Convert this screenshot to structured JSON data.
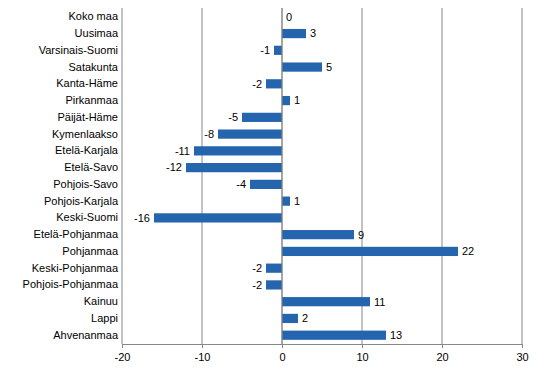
{
  "chart_data": {
    "type": "bar",
    "orientation": "horizontal",
    "categories": [
      "Koko maa",
      "Uusimaa",
      "Varsinais-Suomi",
      "Satakunta",
      "Kanta-Häme",
      "Pirkanmaa",
      "Päijät-Häme",
      "Kymenlaakso",
      "Etelä-Karjala",
      "Etelä-Savo",
      "Pohjois-Savo",
      "Pohjois-Karjala",
      "Keski-Suomi",
      "Etelä-Pohjanmaa",
      "Pohjanmaa",
      "Keski-Pohjanmaa",
      "Pohjois-Pohjanmaa",
      "Kainuu",
      "Lappi",
      "Ahvenanmaa"
    ],
    "values": [
      0,
      3,
      -1,
      5,
      -2,
      1,
      -5,
      -8,
      -11,
      -12,
      -4,
      1,
      -16,
      9,
      22,
      -2,
      -2,
      11,
      2,
      13
    ],
    "color": "#2565ae",
    "xlim": [
      -20,
      30
    ],
    "xticks": [
      -20,
      -10,
      0,
      10,
      20,
      30
    ],
    "grid": true,
    "data_labels": true
  }
}
